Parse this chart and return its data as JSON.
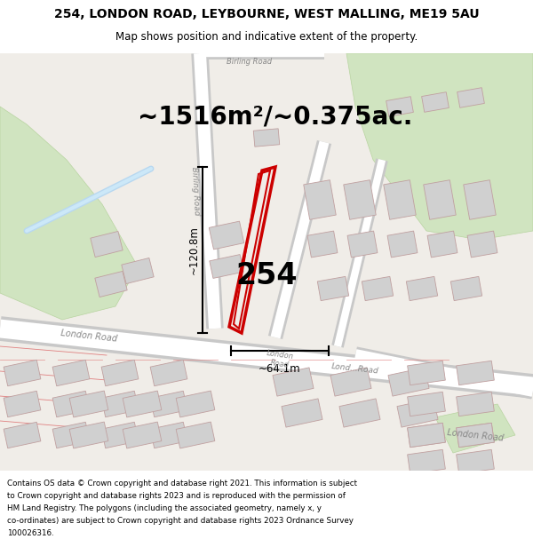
{
  "title_line1": "254, LONDON ROAD, LEYBOURNE, WEST MALLING, ME19 5AU",
  "title_line2": "Map shows position and indicative extent of the property.",
  "area_text": "~1516m²/~0.375ac.",
  "label_254": "254",
  "dim_vertical": "~120.8m",
  "dim_horizontal": "~64.1m",
  "footer_lines": [
    "Contains OS data © Crown copyright and database right 2021. This information is subject",
    "to Crown copyright and database rights 2023 and is reproduced with the permission of",
    "HM Land Registry. The polygons (including the associated geometry, namely x, y",
    "co-ordinates) are subject to Crown copyright and database rights 2023 Ordnance Survey",
    "100026316."
  ],
  "map_bg": "#f0ede8",
  "road_color": "#ffffff",
  "road_edge": "#c8c8c8",
  "building_fill": "#d0d0d0",
  "building_edge": "#c0a0a0",
  "green_fill": "#d0e4c0",
  "green_edge": "#b8d4a0",
  "property_color": "#cc0000",
  "text_color": "#000000",
  "road_label_color": "#888888",
  "stream_color": "#b8d8f0",
  "header_bg": "#ffffff",
  "footer_bg": "#ffffff",
  "boundary_color": "#e08080"
}
